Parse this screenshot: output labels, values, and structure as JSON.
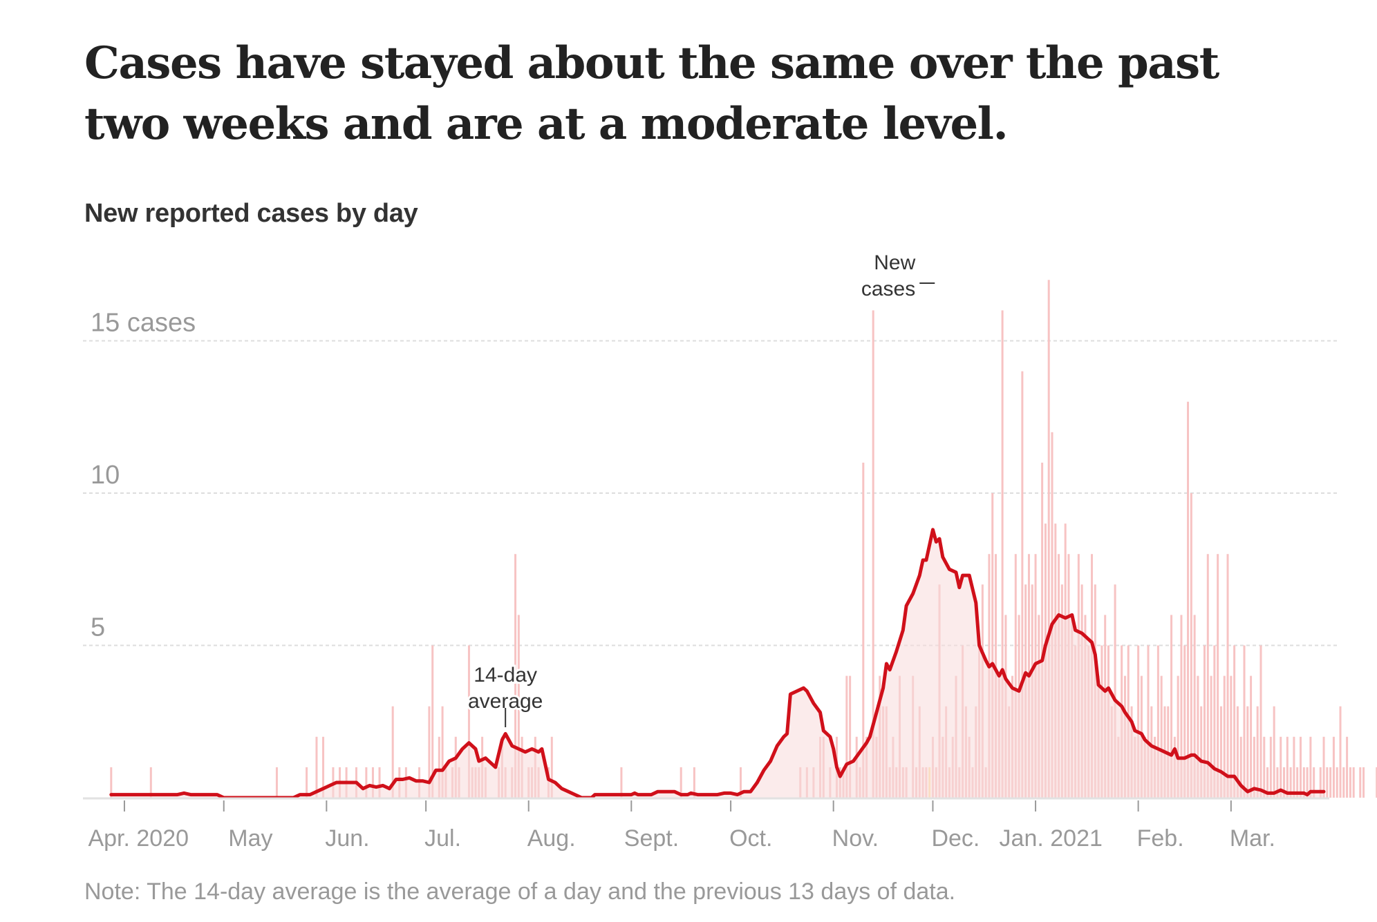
{
  "headline": "Cases have stayed about the same over the past two weeks and are at a moderate level.",
  "note": "Note: The 14-day average is the average of a day and the previous 13 days of data.",
  "chart_data": {
    "type": "bar",
    "title": "New reported cases by day",
    "xlabel": "",
    "ylabel": "cases",
    "ylim": [
      0,
      17.5
    ],
    "grid": true,
    "start_date": "2020-03-28",
    "end_date": "2021-03-29",
    "y_ticks": [
      {
        "value": 5,
        "label": "5"
      },
      {
        "value": 10,
        "label": "10"
      },
      {
        "value": 15,
        "label": "15 cases"
      }
    ],
    "x_ticks": [
      {
        "day": 4,
        "label": "Apr. 2020"
      },
      {
        "day": 34,
        "label": "May"
      },
      {
        "day": 65,
        "label": "Jun."
      },
      {
        "day": 95,
        "label": "Jul."
      },
      {
        "day": 126,
        "label": "Aug."
      },
      {
        "day": 157,
        "label": "Sept."
      },
      {
        "day": 187,
        "label": "Oct."
      },
      {
        "day": 218,
        "label": "Nov."
      },
      {
        "day": 248,
        "label": "Dec."
      },
      {
        "day": 279,
        "label": "Jan. 2021"
      },
      {
        "day": 310,
        "label": "Feb."
      },
      {
        "day": 338,
        "label": "Mar."
      }
    ],
    "series": [
      {
        "name": "New cases",
        "type": "bar",
        "color": "#f7c3c3",
        "highlight_color": "#fde3a7",
        "highlight_days": [
          247
        ],
        "values": [
          1,
          0,
          0,
          0,
          0,
          0,
          0,
          0,
          0,
          0,
          0,
          0,
          1,
          0,
          0,
          0,
          0,
          0,
          0,
          0,
          0,
          0,
          0,
          0,
          0,
          0,
          0,
          0,
          0,
          0,
          0,
          0,
          0,
          0,
          0,
          0,
          0,
          0,
          0,
          0,
          0,
          0,
          0,
          0,
          0,
          0,
          0,
          0,
          0,
          0,
          1,
          0,
          0,
          0,
          0,
          0,
          0,
          0,
          0,
          1,
          0,
          0,
          2,
          0,
          2,
          0,
          0,
          1,
          0,
          1,
          0,
          1,
          0,
          0,
          1,
          0,
          0,
          1,
          0,
          1,
          0,
          1,
          0,
          0,
          0,
          3,
          0,
          1,
          0,
          1,
          0,
          0,
          0,
          1,
          0,
          0,
          3,
          5,
          0,
          2,
          3,
          1,
          0,
          1,
          2,
          1,
          0,
          0,
          5,
          1,
          1,
          1,
          2,
          1,
          0,
          0,
          0,
          1,
          2,
          1,
          0,
          1,
          8,
          6,
          2,
          0,
          1,
          1,
          2,
          1,
          0,
          0,
          1,
          2,
          0,
          0,
          0,
          0,
          0,
          0,
          0,
          0,
          0,
          0,
          0,
          0,
          0,
          0,
          0,
          0,
          0,
          0,
          0,
          0,
          1,
          0,
          0,
          0,
          0,
          0,
          0,
          0,
          0,
          0,
          0,
          0,
          0,
          0,
          0,
          0,
          0,
          0,
          1,
          0,
          0,
          0,
          1,
          0,
          0,
          0,
          0,
          0,
          0,
          0,
          0,
          0,
          0,
          0,
          0,
          0,
          1,
          0,
          0,
          0,
          0,
          0,
          0,
          0,
          0,
          0,
          0,
          0,
          0,
          0,
          0,
          0,
          0,
          0,
          1,
          0,
          1,
          0,
          1,
          0,
          2,
          2,
          0,
          1,
          0,
          2,
          1,
          1,
          4,
          4,
          0,
          2,
          1,
          11,
          2,
          0,
          16,
          2,
          4,
          3,
          3,
          1,
          2,
          1,
          4,
          1,
          1,
          0,
          4,
          1,
          3,
          1,
          1,
          1,
          2,
          1,
          7,
          2,
          3,
          1,
          2,
          4,
          1,
          5,
          3,
          2,
          1,
          3,
          5,
          7,
          1,
          8,
          10,
          8,
          4,
          16,
          6,
          3,
          4,
          8,
          6,
          14,
          7,
          8,
          7,
          8,
          6,
          11,
          9,
          17,
          12,
          9,
          8,
          7,
          9,
          8,
          6,
          5,
          8,
          7,
          6,
          5,
          8,
          7,
          4,
          5,
          6,
          5,
          3,
          7,
          2,
          5,
          4,
          5,
          3,
          2,
          5,
          4,
          2,
          5,
          3,
          2,
          5,
          4,
          3,
          3,
          6,
          2,
          4,
          6,
          5,
          13,
          10,
          6,
          4,
          3,
          5,
          8,
          4,
          5,
          8,
          3,
          4,
          8,
          4,
          5,
          3,
          2,
          5,
          3,
          4,
          2,
          3,
          5,
          2,
          1,
          2,
          3,
          1,
          2,
          1,
          2,
          1,
          2,
          1,
          2,
          1,
          1,
          2,
          1,
          0,
          1,
          2,
          1,
          1,
          2,
          1,
          3,
          1,
          2,
          1,
          1,
          0,
          1,
          1,
          0,
          0,
          0,
          1,
          0,
          0,
          1,
          0,
          0,
          0,
          0,
          0,
          1,
          0,
          0,
          0,
          0,
          0,
          0,
          1
        ]
      },
      {
        "name": "14-day average",
        "type": "line",
        "color": "#d0101a",
        "keyframes": [
          [
            0,
            0.1
          ],
          [
            20,
            0.1
          ],
          [
            22,
            0.15
          ],
          [
            24,
            0.1
          ],
          [
            32,
            0.1
          ],
          [
            34,
            0.0
          ],
          [
            55,
            0.0
          ],
          [
            57,
            0.1
          ],
          [
            60,
            0.1
          ],
          [
            62,
            0.2
          ],
          [
            64,
            0.3
          ],
          [
            66,
            0.4
          ],
          [
            68,
            0.5
          ],
          [
            74,
            0.5
          ],
          [
            76,
            0.3
          ],
          [
            78,
            0.4
          ],
          [
            80,
            0.35
          ],
          [
            82,
            0.4
          ],
          [
            84,
            0.3
          ],
          [
            86,
            0.6
          ],
          [
            88,
            0.6
          ],
          [
            90,
            0.65
          ],
          [
            92,
            0.55
          ],
          [
            94,
            0.55
          ],
          [
            96,
            0.5
          ],
          [
            98,
            0.9
          ],
          [
            100,
            0.9
          ],
          [
            102,
            1.2
          ],
          [
            104,
            1.3
          ],
          [
            106,
            1.6
          ],
          [
            108,
            1.8
          ],
          [
            110,
            1.6
          ],
          [
            111,
            1.2
          ],
          [
            113,
            1.3
          ],
          [
            116,
            1.0
          ],
          [
            118,
            1.9
          ],
          [
            119,
            2.1
          ],
          [
            121,
            1.7
          ],
          [
            123,
            1.6
          ],
          [
            125,
            1.5
          ],
          [
            127,
            1.6
          ],
          [
            129,
            1.5
          ],
          [
            130,
            1.6
          ],
          [
            132,
            0.6
          ],
          [
            134,
            0.5
          ],
          [
            136,
            0.3
          ],
          [
            138,
            0.2
          ],
          [
            140,
            0.1
          ],
          [
            142,
            0.0
          ],
          [
            145,
            0.0
          ],
          [
            146,
            0.1
          ],
          [
            152,
            0.1
          ],
          [
            157,
            0.1
          ],
          [
            158,
            0.15
          ],
          [
            159,
            0.1
          ],
          [
            163,
            0.1
          ],
          [
            165,
            0.2
          ],
          [
            170,
            0.2
          ],
          [
            172,
            0.1
          ],
          [
            174,
            0.1
          ],
          [
            175,
            0.15
          ],
          [
            177,
            0.1
          ],
          [
            183,
            0.1
          ],
          [
            185,
            0.15
          ],
          [
            187,
            0.15
          ],
          [
            189,
            0.1
          ],
          [
            191,
            0.2
          ],
          [
            193,
            0.2
          ],
          [
            195,
            0.5
          ],
          [
            197,
            0.9
          ],
          [
            199,
            1.2
          ],
          [
            201,
            1.7
          ],
          [
            203,
            2.0
          ],
          [
            204,
            2.1
          ],
          [
            205,
            3.4
          ],
          [
            207,
            3.5
          ],
          [
            209,
            3.6
          ],
          [
            210,
            3.5
          ],
          [
            212,
            3.1
          ],
          [
            214,
            2.8
          ],
          [
            215,
            2.2
          ],
          [
            217,
            2.0
          ],
          [
            218,
            1.6
          ],
          [
            219,
            1.0
          ],
          [
            220,
            0.7
          ],
          [
            222,
            1.1
          ],
          [
            224,
            1.2
          ],
          [
            226,
            1.5
          ],
          [
            228,
            1.8
          ],
          [
            229,
            2.0
          ],
          [
            231,
            2.8
          ],
          [
            233,
            3.6
          ],
          [
            234,
            4.4
          ],
          [
            235,
            4.2
          ],
          [
            237,
            4.8
          ],
          [
            239,
            5.5
          ],
          [
            240,
            6.3
          ],
          [
            242,
            6.7
          ],
          [
            244,
            7.3
          ],
          [
            245,
            7.8
          ],
          [
            246,
            7.8
          ],
          [
            248,
            8.8
          ],
          [
            249,
            8.4
          ],
          [
            250,
            8.5
          ],
          [
            251,
            7.9
          ],
          [
            253,
            7.5
          ],
          [
            255,
            7.4
          ],
          [
            256,
            6.9
          ],
          [
            257,
            7.3
          ],
          [
            259,
            7.3
          ],
          [
            261,
            6.4
          ],
          [
            262,
            5.0
          ],
          [
            264,
            4.5
          ],
          [
            265,
            4.3
          ],
          [
            266,
            4.4
          ],
          [
            268,
            4.0
          ],
          [
            269,
            4.2
          ],
          [
            270,
            3.9
          ],
          [
            272,
            3.6
          ],
          [
            274,
            3.5
          ],
          [
            276,
            4.1
          ],
          [
            277,
            4.0
          ],
          [
            279,
            4.4
          ],
          [
            281,
            4.5
          ],
          [
            282,
            5.0
          ],
          [
            284,
            5.7
          ],
          [
            286,
            6.0
          ],
          [
            288,
            5.9
          ],
          [
            290,
            6.0
          ],
          [
            291,
            5.5
          ],
          [
            293,
            5.4
          ],
          [
            295,
            5.2
          ],
          [
            296,
            5.1
          ],
          [
            297,
            4.7
          ],
          [
            298,
            3.7
          ],
          [
            300,
            3.5
          ],
          [
            301,
            3.6
          ],
          [
            303,
            3.2
          ],
          [
            305,
            3.0
          ],
          [
            306,
            2.8
          ],
          [
            308,
            2.5
          ],
          [
            309,
            2.2
          ],
          [
            311,
            2.1
          ],
          [
            312,
            1.9
          ],
          [
            314,
            1.7
          ],
          [
            316,
            1.6
          ],
          [
            318,
            1.5
          ],
          [
            320,
            1.4
          ],
          [
            321,
            1.6
          ],
          [
            322,
            1.3
          ],
          [
            324,
            1.3
          ],
          [
            326,
            1.4
          ],
          [
            327,
            1.4
          ],
          [
            329,
            1.2
          ],
          [
            331,
            1.15
          ],
          [
            333,
            0.95
          ],
          [
            335,
            0.85
          ],
          [
            337,
            0.7
          ],
          [
            339,
            0.7
          ],
          [
            341,
            0.4
          ],
          [
            343,
            0.2
          ],
          [
            345,
            0.3
          ],
          [
            347,
            0.25
          ],
          [
            349,
            0.15
          ],
          [
            351,
            0.15
          ],
          [
            353,
            0.25
          ],
          [
            355,
            0.15
          ],
          [
            360,
            0.15
          ],
          [
            361,
            0.1
          ],
          [
            362,
            0.2
          ],
          [
            366,
            0.2
          ]
        ]
      }
    ],
    "annotations": [
      {
        "text_lines": [
          "New",
          "cases"
        ],
        "target_series": "New cases",
        "target_day": 249
      },
      {
        "text_lines": [
          "14-day",
          "average"
        ],
        "target_series": "14-day average",
        "target_day": 119
      }
    ]
  }
}
